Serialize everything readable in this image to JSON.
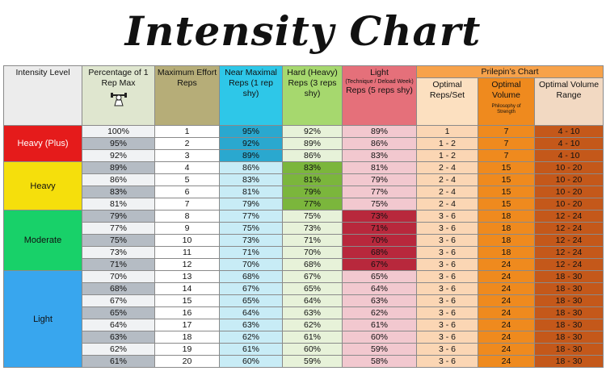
{
  "title": "Intensity Chart",
  "headers": {
    "intensity_level": "Intensity Level",
    "pct_1rm": "Percentage of 1 Rep Max",
    "max_effort": "Maximum Effort Reps",
    "near_maximal": "Near Maximal Reps (1 rep shy)",
    "hard": "Hard (Heavy) Reps (3 reps shy)",
    "light_line1": "Light",
    "light_line2": "(Technique / Deload Week)",
    "light_line3": "Reps (5 reps shy)",
    "prilepin": "Prilepin’s Chart",
    "optimal_reps": "Optimal Reps/Set",
    "optimal_volume": "Optimal Volume",
    "optimal_range": "Optimal Volume Range",
    "logo_text": "Philosophy of Strength"
  },
  "groups": [
    {
      "label": "Heavy (Plus)",
      "color": "#e51b1b",
      "text_color": "#ffffff",
      "rows": 3
    },
    {
      "label": "Heavy",
      "color": "#f5df0c",
      "text_color": "#111111",
      "rows": 4
    },
    {
      "label": "Moderate",
      "color": "#18d169",
      "text_color": "#111111",
      "rows": 5
    },
    {
      "label": "Light",
      "color": "#38a6ee",
      "text_color": "#111111",
      "rows": 8
    }
  ],
  "rows": [
    {
      "pct": "100%",
      "max": "1",
      "near": "95%",
      "hard": "92%",
      "light": "89%",
      "reps": "1",
      "vol": "7",
      "range": "4 - 10"
    },
    {
      "pct": "95%",
      "max": "2",
      "near": "92%",
      "hard": "89%",
      "light": "86%",
      "reps": "1 - 2",
      "vol": "7",
      "range": "4 - 10"
    },
    {
      "pct": "92%",
      "max": "3",
      "near": "89%",
      "hard": "86%",
      "light": "83%",
      "reps": "1 - 2",
      "vol": "7",
      "range": "4 - 10"
    },
    {
      "pct": "89%",
      "max": "4",
      "near": "86%",
      "hard": "83%",
      "light": "81%",
      "reps": "2 - 4",
      "vol": "15",
      "range": "10 - 20"
    },
    {
      "pct": "86%",
      "max": "5",
      "near": "83%",
      "hard": "81%",
      "light": "79%",
      "reps": "2 - 4",
      "vol": "15",
      "range": "10 - 20"
    },
    {
      "pct": "83%",
      "max": "6",
      "near": "81%",
      "hard": "79%",
      "light": "77%",
      "reps": "2 - 4",
      "vol": "15",
      "range": "10 - 20"
    },
    {
      "pct": "81%",
      "max": "7",
      "near": "79%",
      "hard": "77%",
      "light": "75%",
      "reps": "2 - 4",
      "vol": "15",
      "range": "10 - 20"
    },
    {
      "pct": "79%",
      "max": "8",
      "near": "77%",
      "hard": "75%",
      "light": "73%",
      "reps": "3 - 6",
      "vol": "18",
      "range": "12 - 24"
    },
    {
      "pct": "77%",
      "max": "9",
      "near": "75%",
      "hard": "73%",
      "light": "71%",
      "reps": "3 - 6",
      "vol": "18",
      "range": "12 - 24"
    },
    {
      "pct": "75%",
      "max": "10",
      "near": "73%",
      "hard": "71%",
      "light": "70%",
      "reps": "3 - 6",
      "vol": "18",
      "range": "12 - 24"
    },
    {
      "pct": "73%",
      "max": "11",
      "near": "71%",
      "hard": "70%",
      "light": "68%",
      "reps": "3 - 6",
      "vol": "18",
      "range": "12 - 24"
    },
    {
      "pct": "71%",
      "max": "12",
      "near": "70%",
      "hard": "68%",
      "light": "67%",
      "reps": "3 - 6",
      "vol": "24",
      "range": "12 - 24"
    },
    {
      "pct": "70%",
      "max": "13",
      "near": "68%",
      "hard": "67%",
      "light": "65%",
      "reps": "3 - 6",
      "vol": "24",
      "range": "18 - 30"
    },
    {
      "pct": "68%",
      "max": "14",
      "near": "67%",
      "hard": "65%",
      "light": "64%",
      "reps": "3 - 6",
      "vol": "24",
      "range": "18 - 30"
    },
    {
      "pct": "67%",
      "max": "15",
      "near": "65%",
      "hard": "64%",
      "light": "63%",
      "reps": "3 - 6",
      "vol": "24",
      "range": "18 - 30"
    },
    {
      "pct": "65%",
      "max": "16",
      "near": "64%",
      "hard": "63%",
      "light": "62%",
      "reps": "3 - 6",
      "vol": "24",
      "range": "18 - 30"
    },
    {
      "pct": "64%",
      "max": "17",
      "near": "63%",
      "hard": "62%",
      "light": "61%",
      "reps": "3 - 6",
      "vol": "24",
      "range": "18 - 30"
    },
    {
      "pct": "63%",
      "max": "18",
      "near": "62%",
      "hard": "61%",
      "light": "60%",
      "reps": "3 - 6",
      "vol": "24",
      "range": "18 - 30"
    },
    {
      "pct": "62%",
      "max": "19",
      "near": "61%",
      "hard": "60%",
      "light": "59%",
      "reps": "3 - 6",
      "vol": "24",
      "range": "18 - 30"
    },
    {
      "pct": "61%",
      "max": "20",
      "near": "60%",
      "hard": "59%",
      "light": "58%",
      "reps": "3 - 6",
      "vol": "24",
      "range": "18 - 30"
    }
  ],
  "colors": {
    "header_intensity": "#ececec",
    "header_pct": "#dfe6cf",
    "header_max": "#b6ad78",
    "header_near": "#2ec7e8",
    "header_hard": "#a6d86e",
    "header_light": "#e5707a",
    "header_prilepin": "#f7a24a",
    "header_reps": "#fce0c0",
    "header_volume": "#ef8a1e",
    "header_range": "#f2d9c2",
    "pct_light": "#f0f2f4",
    "pct_dark": "#b5bcc4",
    "max_cell": "#ffffff",
    "near_dark": "#2aa8cf",
    "near_light": "#c8ecf6",
    "hard_dark": "#7bb63c",
    "hard_light": "#e7f2d9",
    "light_dark": "#b8283c",
    "light_pale": "#f2c8cf",
    "reps_cell": "#fbd6b4",
    "vol_cell": "#ef8a1e",
    "range_cell": "#c4581a"
  }
}
